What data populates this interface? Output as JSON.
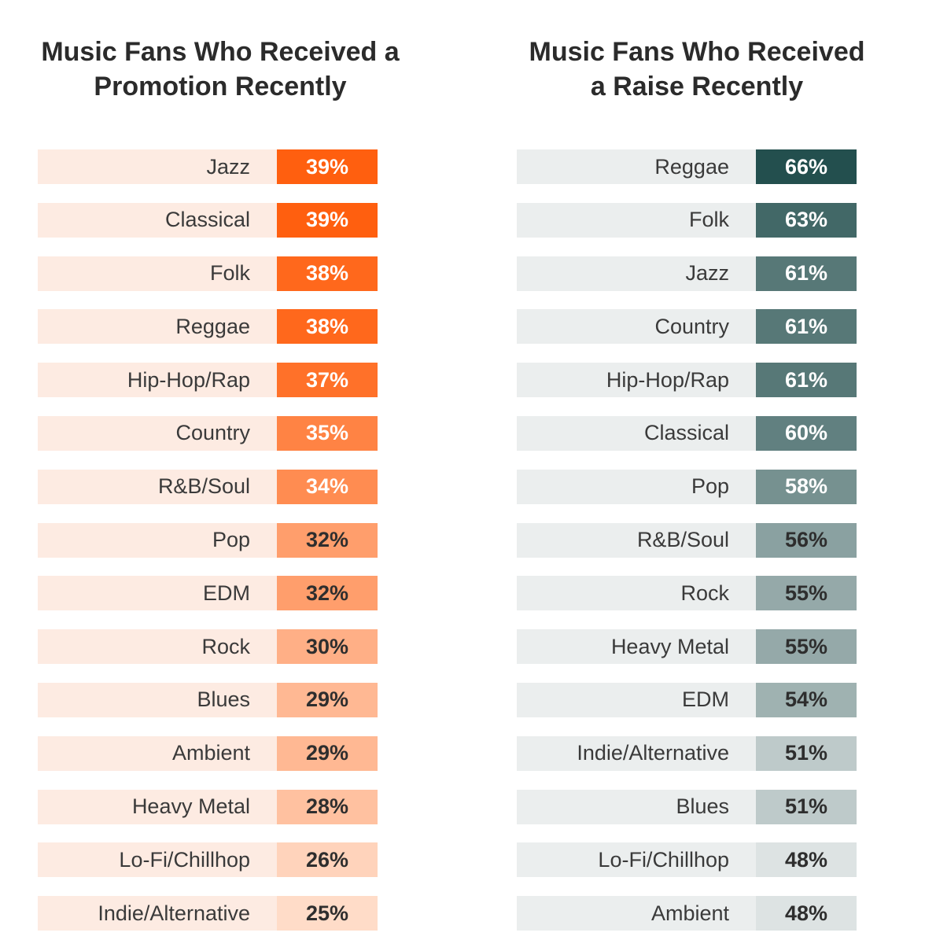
{
  "chart_data": [
    {
      "type": "table",
      "title": "Music Fans Who Received a Promotion Recently",
      "title_lines": [
        "Music Fans Who Received a",
        "Promotion Recently"
      ],
      "unit": "%",
      "row_bg": "#FDEBE2",
      "color_high": "#FF5F0F",
      "color_low": "#FFDCC8",
      "categories": [
        "Jazz",
        "Classical",
        "Folk",
        "Reggae",
        "Hip-Hop/Rap",
        "Country",
        "R&B/Soul",
        "Pop",
        "EDM",
        "Rock",
        "Blues",
        "Ambient",
        "Heavy Metal",
        "Lo-Fi/Chillhop",
        "Indie/Alternative"
      ],
      "values": [
        39,
        39,
        38,
        38,
        37,
        35,
        34,
        32,
        32,
        30,
        29,
        29,
        28,
        26,
        25
      ]
    },
    {
      "type": "table",
      "title": "Music Fans Who Received a Raise Recently",
      "title_lines": [
        "Music Fans Who Received",
        "a Raise Recently"
      ],
      "unit": "%",
      "row_bg": "#EBEEEE",
      "color_high": "#234F4E",
      "color_low": "#DDE3E3",
      "categories": [
        "Reggae",
        "Folk",
        "Jazz",
        "Country",
        "Hip-Hop/Rap",
        "Classical",
        "Pop",
        "R&B/Soul",
        "Rock",
        "Heavy Metal",
        "EDM",
        "Indie/Alternative",
        "Blues",
        "Lo-Fi/Chillhop",
        "Ambient"
      ],
      "values": [
        66,
        63,
        61,
        61,
        61,
        60,
        58,
        56,
        55,
        55,
        54,
        51,
        51,
        48,
        48
      ]
    }
  ]
}
